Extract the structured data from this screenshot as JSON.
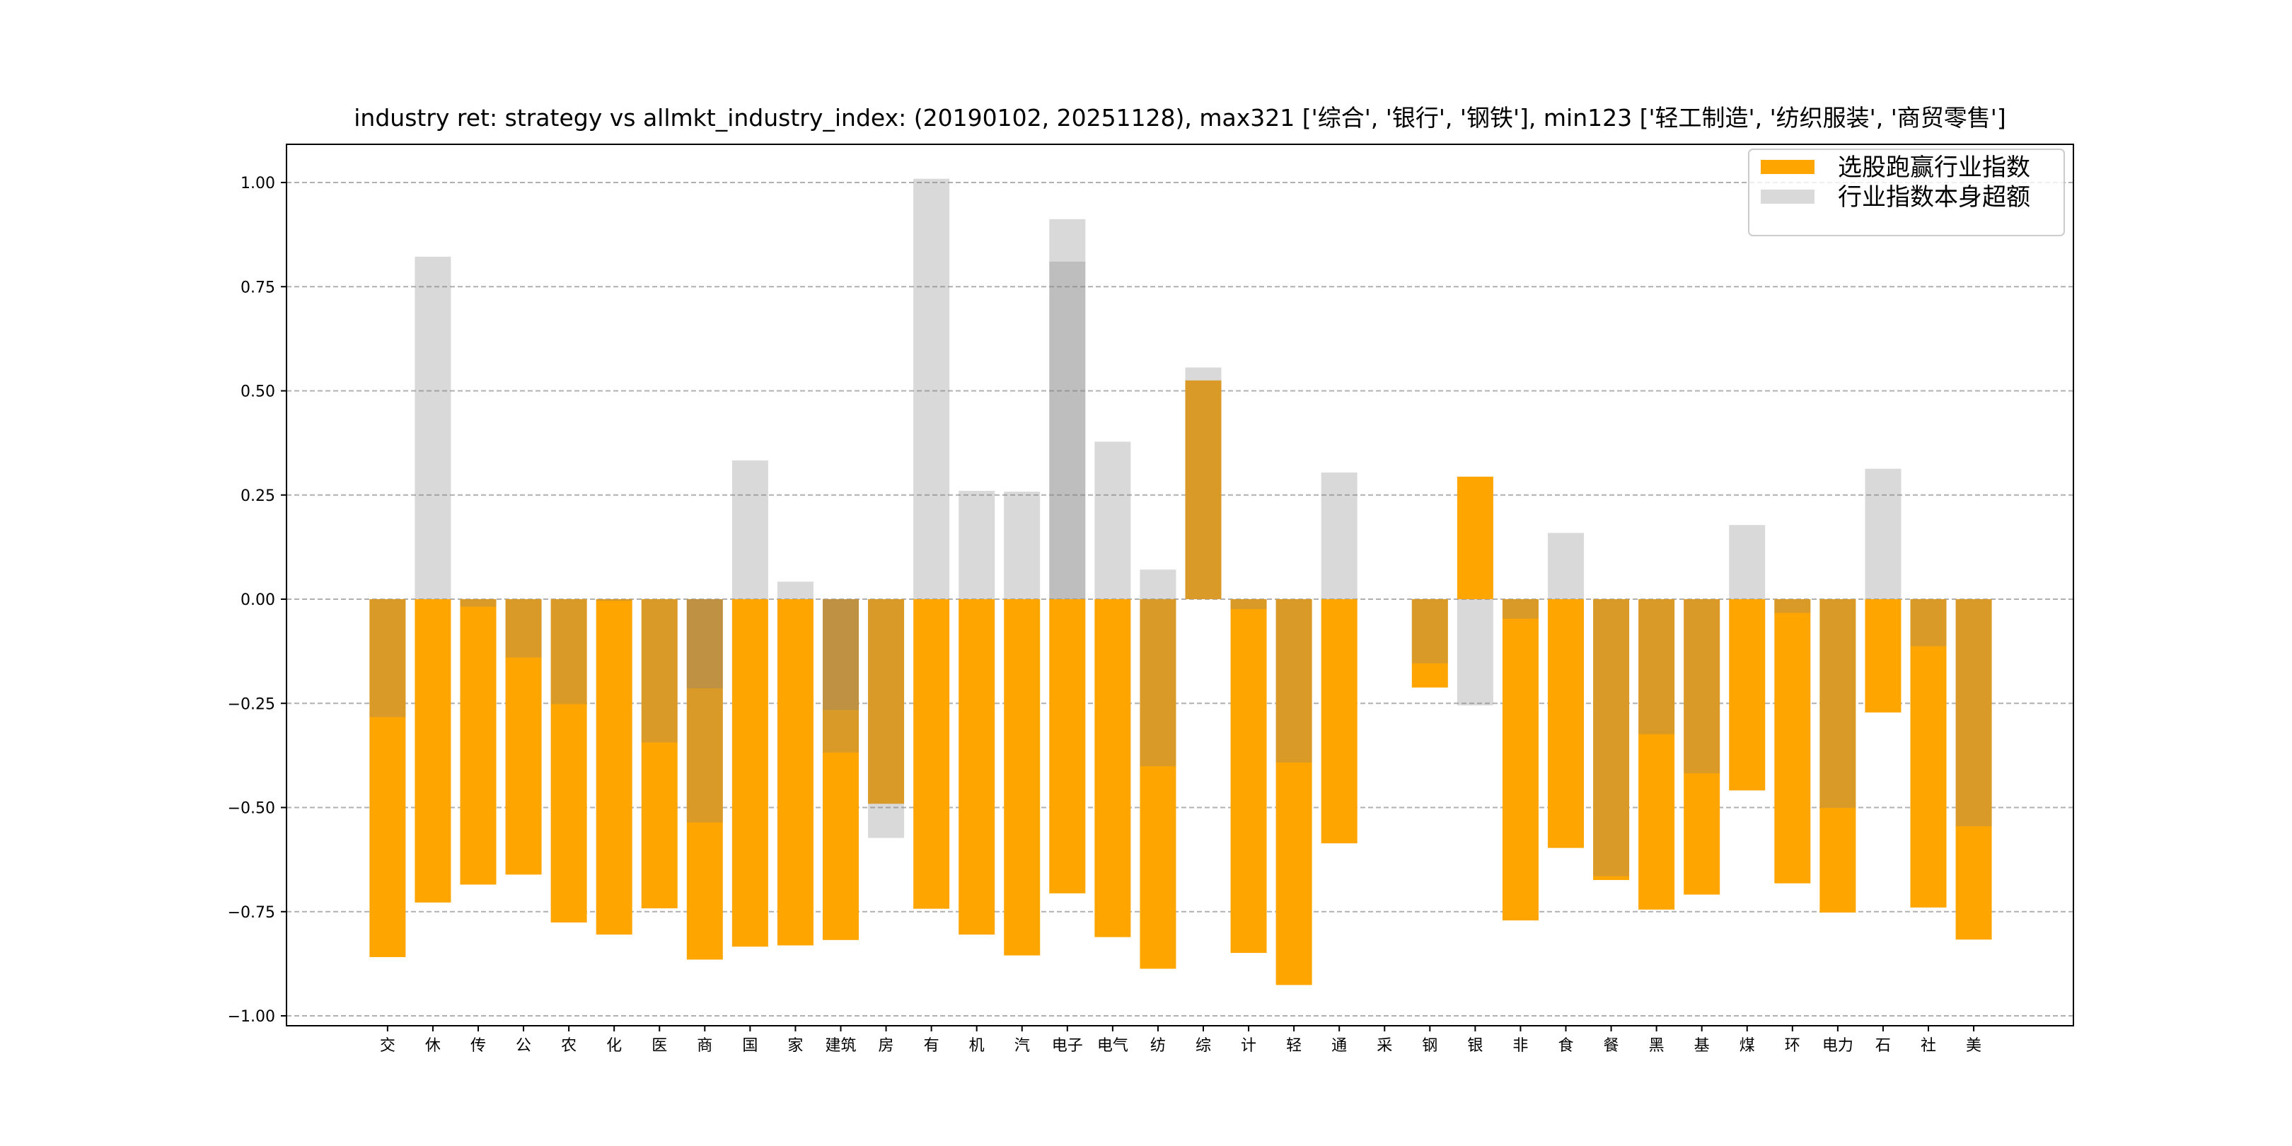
{
  "chart_data": {
    "type": "bar",
    "title": "industry ret: strategy vs allmkt_industry_index: (20190102, 20251128), max321 ['综合', '银行', '钢铁'], min123 ['轻工制造', '纺织服装', '商贸零售']",
    "xlabel": "",
    "ylabel": "",
    "ylim": [
      -1.02,
      1.03
    ],
    "xlim": [
      -2.23,
      37.2
    ],
    "yticks": [
      1.0,
      0.75,
      0.5,
      0.25,
      0.0,
      -0.25,
      -0.5,
      -0.75,
      -1.0
    ],
    "ytick_labels": [
      "1.00",
      "0.75",
      "0.50",
      "0.25",
      "0.00",
      "−0.25",
      "−0.50",
      "−0.75",
      "−1.00"
    ],
    "grid": "y dashed",
    "legend_placement": "top-right",
    "colors": {
      "strategy": "#FFA500",
      "index": "#808080",
      "index_alpha": 0.3,
      "grid": "#b0b0b0"
    },
    "legend": [
      "选股跑赢行业指数",
      "行业指数本身超额"
    ],
    "categories": [
      "交",
      "休",
      "传",
      "公",
      "农",
      "化",
      "医",
      "商",
      "国",
      "家",
      "建筑",
      "房",
      "有",
      "机",
      "汽",
      "电子",
      "电气",
      "纺",
      "综",
      "计",
      "轻",
      "通",
      "采",
      "钢",
      "银",
      "非",
      "食",
      "餐",
      "黑",
      "基",
      "煤",
      "环",
      "电力",
      "石",
      "社",
      "美"
    ],
    "series": [
      {
        "name": "选股跑赢行业指数",
        "values": [
          [
            -0.859
          ],
          [
            -0.728
          ],
          [
            -0.685
          ],
          [
            -0.661
          ],
          [
            -0.776
          ],
          [
            -0.805
          ],
          [
            -0.742
          ],
          [
            -0.865
          ],
          [
            -0.834
          ],
          [
            -0.831
          ],
          [
            -0.818
          ],
          [
            -0.491
          ],
          [
            -0.743
          ],
          [
            -0.805
          ],
          [
            -0.855
          ],
          [
            -0.706
          ],
          [
            -0.811
          ],
          [
            -0.887
          ],
          [
            0.525
          ],
          [
            -0.849
          ],
          [
            -0.926
          ],
          [
            -0.586
          ],
          [
            0
          ],
          [
            -0.212
          ],
          [
            0.294
          ],
          [
            -0.771
          ],
          [
            -0.597
          ],
          [
            -0.674
          ],
          [
            -0.745
          ],
          [
            -0.709
          ],
          [
            -0.459
          ],
          [
            -0.682
          ],
          [
            -0.752
          ],
          [
            -0.272
          ],
          [
            -0.74
          ],
          [
            -0.817
          ]
        ]
      },
      {
        "name": "行业指数本身超额",
        "values": [
          [
            -0.283
          ],
          [
            0.822
          ],
          [
            -0.018
          ],
          [
            -0.14
          ],
          [
            -0.252
          ],
          [
            -0.004
          ],
          [
            -0.344
          ],
          [
            -0.214,
            -0.536
          ],
          [
            0.333
          ],
          [
            0.042
          ],
          [
            -0.266,
            -0.368
          ],
          [
            -0.573
          ],
          [
            1.009
          ],
          [
            0.26
          ],
          [
            0.258
          ],
          [
            0.912,
            0.81
          ],
          [
            0.378
          ],
          [
            0.071,
            -0.401
          ],
          [
            0.556
          ],
          [
            -0.024
          ],
          [
            -0.392
          ],
          [
            0.304
          ],
          [
            0
          ],
          [
            -0.154
          ],
          [
            -0.255
          ],
          [
            -0.047
          ],
          [
            0.159
          ],
          [
            -0.665
          ],
          [
            -0.324
          ],
          [
            -0.418
          ],
          [
            0.178
          ],
          [
            -0.033
          ],
          [
            -0.501
          ],
          [
            0.313
          ],
          [
            -0.113
          ],
          [
            -0.545
          ]
        ]
      }
    ]
  }
}
